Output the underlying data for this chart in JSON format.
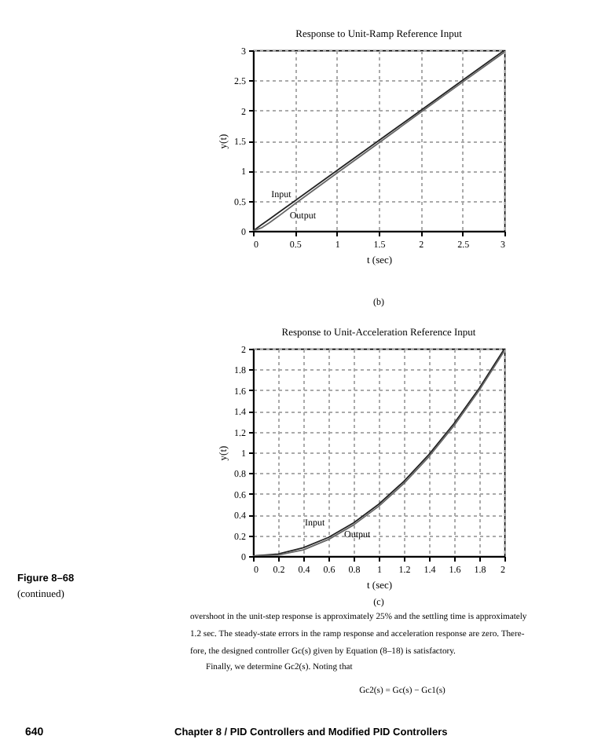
{
  "chart_data": [
    {
      "type": "line",
      "title": "Response to Unit-Ramp Reference Input",
      "xlabel": "t (sec)",
      "ylabel": "y(t)",
      "x": [
        0,
        0.1,
        0.2,
        0.3,
        0.5,
        1,
        1.5,
        2,
        2.5,
        3
      ],
      "series": [
        {
          "color": "#222222",
          "values": [
            0,
            0.1,
            0.2,
            0.3,
            0.5,
            1,
            1.5,
            2,
            2.5,
            3
          ]
        },
        {
          "color": "#666666",
          "values": [
            0,
            0.05,
            0.14,
            0.24,
            0.45,
            0.96,
            1.46,
            1.97,
            2.47,
            2.97
          ]
        }
      ],
      "xlim": [
        0,
        3
      ],
      "ylim": [
        0,
        3
      ],
      "xticks": [
        0,
        0.5,
        1,
        1.5,
        2,
        2.5,
        3
      ],
      "yticks": [
        0,
        0.5,
        1,
        1.5,
        2,
        2.5,
        3
      ],
      "grid": true,
      "annotations": [
        {
          "text": "Input",
          "x": 0.2,
          "y": 0.2
        },
        {
          "text": "Output",
          "x": 0.25,
          "y": 0.18
        },
        "(b)"
      ]
    },
    {
      "type": "line",
      "title": "Response to Unit-Acceleration Reference Input",
      "xlabel": "t (sec)",
      "ylabel": "y(t)",
      "x": [
        0,
        0.2,
        0.4,
        0.6,
        0.8,
        1,
        1.2,
        1.4,
        1.6,
        1.8,
        2
      ],
      "series": [
        {
          "color": "#222222",
          "values": [
            0,
            0.02,
            0.08,
            0.18,
            0.32,
            0.5,
            0.72,
            0.98,
            1.28,
            1.62,
            2
          ]
        },
        {
          "color": "#666666",
          "values": [
            0,
            0.01,
            0.06,
            0.16,
            0.3,
            0.48,
            0.7,
            0.96,
            1.26,
            1.6,
            1.98
          ]
        }
      ],
      "xlim": [
        0,
        2
      ],
      "ylim": [
        0,
        2
      ],
      "xticks": [
        0,
        0.2,
        0.4,
        0.6,
        0.8,
        1,
        1.2,
        1.4,
        1.6,
        1.8,
        2
      ],
      "yticks": [
        0,
        0.2,
        0.4,
        0.6,
        0.8,
        1,
        1.2,
        1.4,
        1.6,
        1.8,
        2
      ],
      "grid": true,
      "annotations": [
        {
          "text": "Input",
          "x": 0.4,
          "y": 0.08
        },
        {
          "text": "Output",
          "x": 0.6,
          "y": 0.17
        },
        "(c)",
        "Figure 8–68",
        "(continued)",
        "overshoot in the unit-step response is approximately 25% and the settling time is approximately",
        "1.2 sec. The steady-state errors in the ramp response and acceleration response are zero. There-",
        "fore, the designed controller Gc(s) given by Equation (8–18) is satisfactory.",
        "Finally, we determine Gc2(s). Noting that",
        "Gc2(s) = Gc(s) − Gc1(s)",
        "640",
        "Chapter 8 / PID Controllers and Modified PID Controllers"
      ]
    }
  ]
}
